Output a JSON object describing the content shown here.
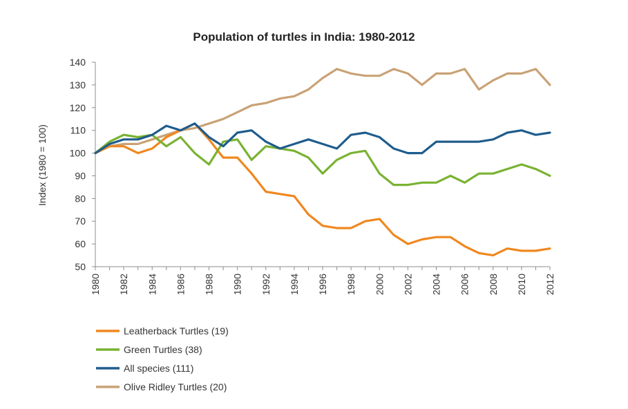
{
  "chart_data": {
    "type": "line",
    "title": "Population of turtles in India: 1980-2012",
    "xlabel": "",
    "ylabel": "Index (1980 = 100)",
    "ylim": [
      50,
      140
    ],
    "yticks": [
      50,
      60,
      70,
      80,
      90,
      100,
      110,
      120,
      130,
      140
    ],
    "xlim": [
      1980,
      2012
    ],
    "xticks": [
      "1980",
      "1982",
      "1984",
      "1986",
      "1988",
      "1990",
      "1992",
      "1994",
      "1996",
      "1998",
      "2000",
      "2002",
      "2004",
      "2006",
      "2008",
      "2010",
      "2012"
    ],
    "grid": false,
    "legend_position": "bottom-left",
    "x": [
      1980,
      1981,
      1982,
      1983,
      1984,
      1985,
      1986,
      1987,
      1988,
      1989,
      1990,
      1991,
      1992,
      1993,
      1994,
      1995,
      1996,
      1997,
      1998,
      1999,
      2000,
      2001,
      2002,
      2003,
      2004,
      2005,
      2006,
      2007,
      2008,
      2009,
      2010,
      2011,
      2012
    ],
    "series": [
      {
        "name": "Leatherback Turtles (19)",
        "color": "#f0871f",
        "values": [
          100,
          103,
          103,
          100,
          102,
          107,
          110,
          113,
          106,
          98,
          98,
          91,
          83,
          82,
          81,
          73,
          68,
          67,
          67,
          70,
          71,
          64,
          60,
          62,
          63,
          63,
          59,
          56,
          55,
          58,
          57,
          57,
          58
        ]
      },
      {
        "name": "Green Turtles (38)",
        "color": "#79b232",
        "values": [
          100,
          105,
          108,
          107,
          108,
          103,
          107,
          100,
          95,
          105,
          106,
          97,
          103,
          102,
          101,
          98,
          91,
          97,
          100,
          101,
          91,
          86,
          86,
          87,
          87,
          90,
          87,
          91,
          91,
          93,
          95,
          93,
          90
        ]
      },
      {
        "name": "All species (111)",
        "color": "#1f5c8c",
        "values": [
          100,
          104,
          106,
          106,
          108,
          112,
          110,
          113,
          107,
          103,
          109,
          110,
          105,
          102,
          104,
          106,
          104,
          102,
          108,
          109,
          107,
          102,
          100,
          100,
          105,
          105,
          105,
          105,
          106,
          109,
          110,
          108,
          109
        ]
      },
      {
        "name": "Olive Ridley Turtles (20)",
        "color": "#c9a276",
        "values": [
          100,
          103,
          104,
          104,
          106,
          108,
          110,
          111,
          113,
          115,
          118,
          121,
          122,
          124,
          125,
          128,
          133,
          137,
          135,
          134,
          134,
          137,
          135,
          130,
          135,
          135,
          137,
          128,
          132,
          135,
          135,
          137,
          130
        ]
      }
    ]
  }
}
